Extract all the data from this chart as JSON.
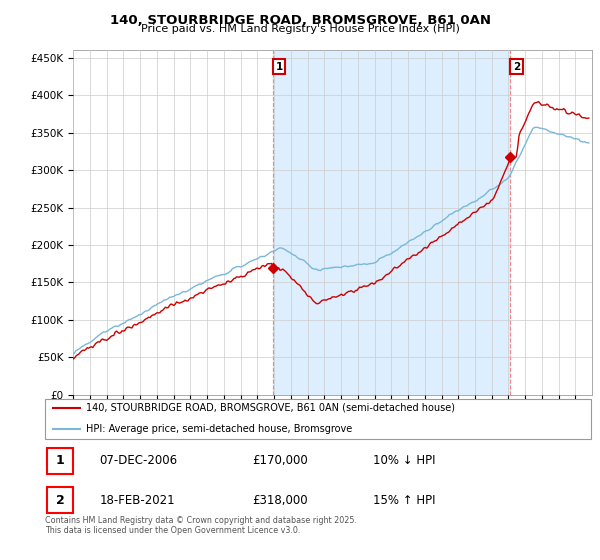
{
  "title_line1": "140, STOURBRIDGE ROAD, BROMSGROVE, B61 0AN",
  "title_line2": "Price paid vs. HM Land Registry's House Price Index (HPI)",
  "ylabel_ticks": [
    "£0",
    "£50K",
    "£100K",
    "£150K",
    "£200K",
    "£250K",
    "£300K",
    "£350K",
    "£400K",
    "£450K"
  ],
  "ytick_values": [
    0,
    50000,
    100000,
    150000,
    200000,
    250000,
    300000,
    350000,
    400000,
    450000
  ],
  "ylim": [
    0,
    460000
  ],
  "xlim_start": 1995.0,
  "xlim_end": 2026.0,
  "hpi_color": "#7ab8d8",
  "price_color": "#cc0000",
  "sale1_x": 2006.93,
  "sale1_y": 170000,
  "sale2_x": 2021.12,
  "sale2_y": 318000,
  "annotation1_label": "1",
  "annotation2_label": "2",
  "legend_line1": "140, STOURBRIDGE ROAD, BROMSGROVE, B61 0AN (semi-detached house)",
  "legend_line2": "HPI: Average price, semi-detached house, Bromsgrove",
  "table_row1_num": "1",
  "table_row1_date": "07-DEC-2006",
  "table_row1_price": "£170,000",
  "table_row1_hpi": "10% ↓ HPI",
  "table_row2_num": "2",
  "table_row2_date": "18-FEB-2021",
  "table_row2_price": "£318,000",
  "table_row2_hpi": "15% ↑ HPI",
  "footer": "Contains HM Land Registry data © Crown copyright and database right 2025.\nThis data is licensed under the Open Government Licence v3.0.",
  "vline_color": "#ee8888",
  "shade_color": "#ddeeff",
  "background_color": "#ffffff",
  "grid_color": "#cccccc"
}
